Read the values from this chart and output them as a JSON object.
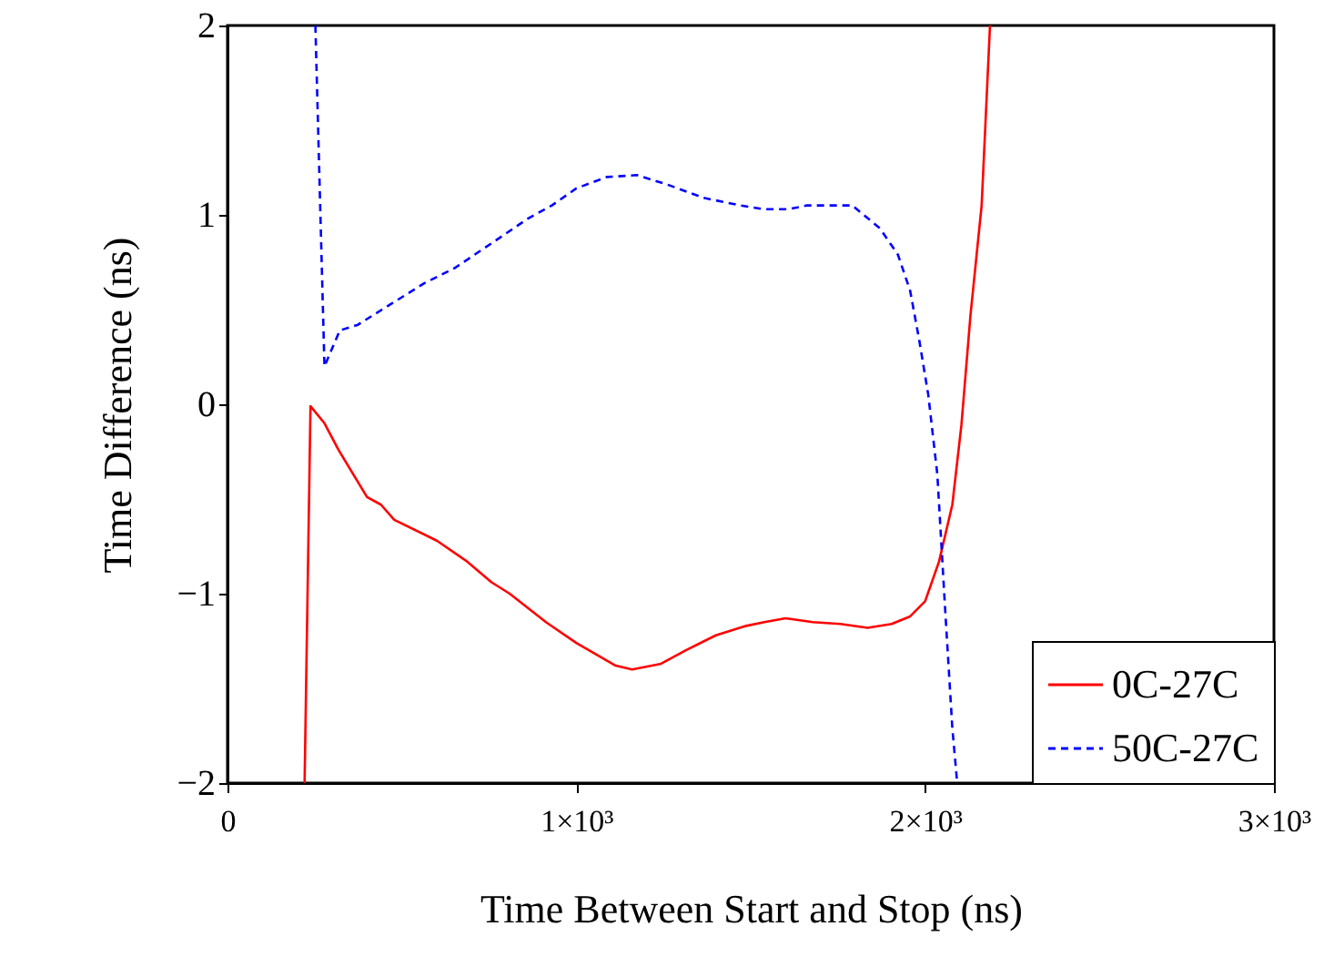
{
  "chart_data": {
    "type": "line",
    "xlabel": "Time Between Start and Stop (ns)",
    "ylabel": "Time Difference (ns)",
    "xlim": [
      0,
      3000
    ],
    "ylim": [
      -2,
      2
    ],
    "xticks": [
      0,
      {
        "value": 1000,
        "label": "1×10³"
      },
      {
        "value": 2000,
        "label": "2×10³"
      },
      {
        "value": 3000,
        "label": "3×10³"
      }
    ],
    "yticks": [
      -2,
      -1,
      0,
      1,
      2
    ],
    "grid": false,
    "legend": "bottom right",
    "marker": "none",
    "series": [
      {
        "name": "0C-27C",
        "color": "#ff0000",
        "line_style": "solid",
        "x": [
          221,
          238,
          278,
          318,
          400,
          440,
          478,
          600,
          687,
          757,
          809,
          913,
          1000,
          1113,
          1160,
          1243,
          1313,
          1400,
          1487,
          1539,
          1600,
          1678,
          1757,
          1835,
          1904,
          1957,
          2000,
          2040,
          2078,
          2104,
          2130,
          2162,
          2186
        ],
        "values": [
          -2,
          -0.01,
          -0.1,
          -0.24,
          -0.49,
          -0.53,
          -0.61,
          -0.72,
          -0.83,
          -0.94,
          -1.0,
          -1.15,
          -1.26,
          -1.38,
          -1.4,
          -1.37,
          -1.3,
          -1.22,
          -1.17,
          -1.15,
          -1.13,
          -1.15,
          -1.16,
          -1.18,
          -1.16,
          -1.12,
          -1.04,
          -0.83,
          -0.53,
          -0.11,
          0.47,
          1.05,
          2
        ]
      },
      {
        "name": "50C-27C",
        "color": "#0000ff",
        "line_style": "dashed",
        "x": [
          252,
          278,
          322,
          374,
          443,
          565,
          652,
          757,
          861,
          930,
          1000,
          1087,
          1174,
          1261,
          1365,
          1470,
          1539,
          1609,
          1661,
          1791,
          1870,
          1922,
          1957,
          1983,
          2009,
          2035,
          2057,
          2078,
          2092
        ],
        "values": [
          2,
          0.2,
          0.39,
          0.42,
          0.5,
          0.64,
          0.72,
          0.85,
          0.98,
          1.05,
          1.14,
          1.2,
          1.21,
          1.16,
          1.09,
          1.05,
          1.03,
          1.03,
          1.05,
          1.05,
          0.93,
          0.79,
          0.6,
          0.34,
          0.05,
          -0.37,
          -1.07,
          -1.71,
          -2
        ]
      }
    ]
  }
}
